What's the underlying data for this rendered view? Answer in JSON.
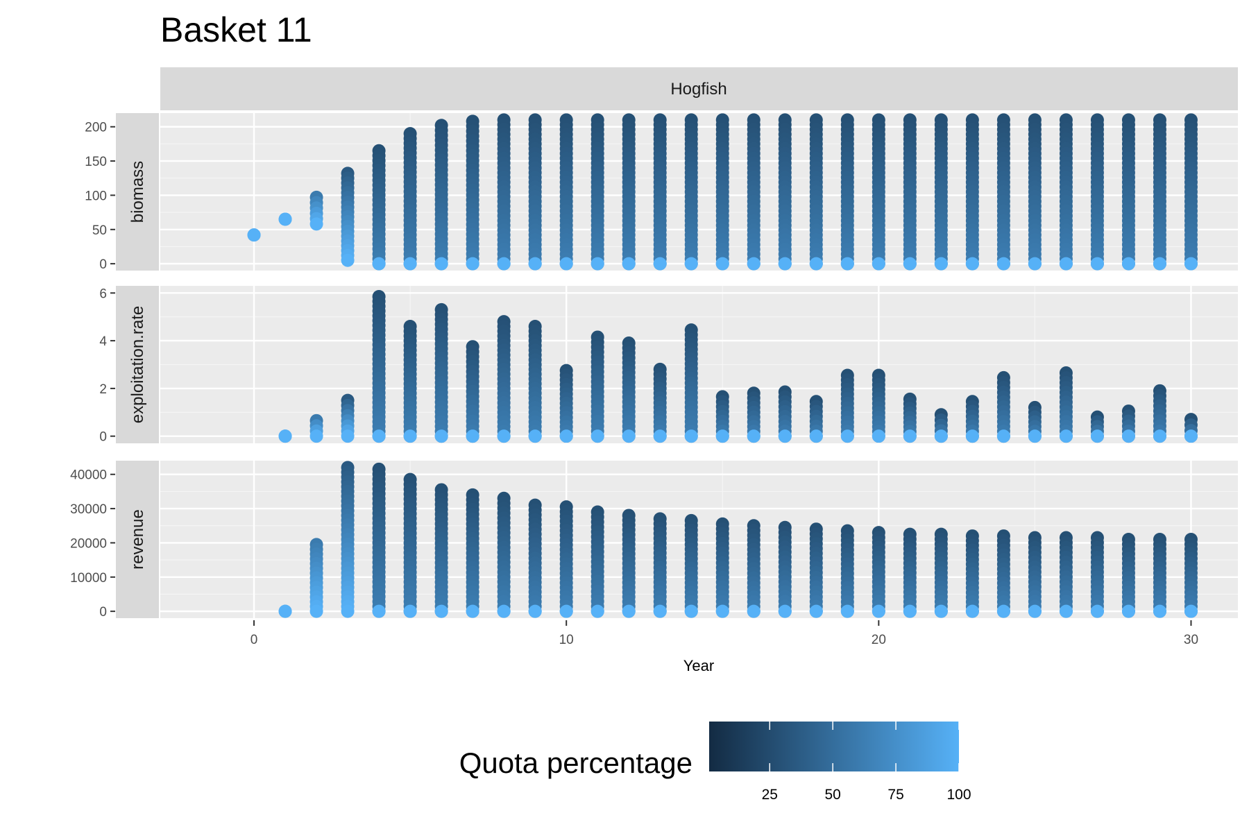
{
  "chart_data": {
    "type": "scatter",
    "title": "Basket 11",
    "facet_column": "Hogfish",
    "xlabel": "Year",
    "x_ticks": [
      0,
      10,
      20,
      30
    ],
    "xlim": [
      -3,
      31.5
    ],
    "grid": true,
    "legend": {
      "title": "Quota percentage",
      "placement": "bottom",
      "ticks": [
        25,
        50,
        75,
        100
      ],
      "range": [
        1,
        100
      ],
      "low_color": "#132B43",
      "high_color": "#56B1F7"
    },
    "panels": [
      {
        "name": "biomass",
        "ylim": [
          -10,
          220
        ],
        "y_ticks": [
          0,
          50,
          100,
          150,
          200
        ],
        "series": [
          {
            "year": 0,
            "min": 42,
            "max": 42,
            "min_quota": 85,
            "max_quota": 100
          },
          {
            "year": 1,
            "min": 65,
            "max": 65,
            "min_quota": 85,
            "max_quota": 100
          },
          {
            "year": 2,
            "min": 58,
            "max": 97,
            "min_quota": 60,
            "max_quota": 100
          },
          {
            "year": 3,
            "min": 5,
            "max": 132,
            "min_quota": 35,
            "max_quota": 100
          },
          {
            "year": 4,
            "min": 0,
            "max": 165
          },
          {
            "year": 5,
            "min": 0,
            "max": 190
          },
          {
            "year": 6,
            "min": 0,
            "max": 202
          },
          {
            "year": 7,
            "min": 0,
            "max": 208
          },
          {
            "year": 8,
            "min": 0,
            "max": 210
          },
          {
            "year": 9,
            "min": 0,
            "max": 210
          },
          {
            "year": 10,
            "min": 0,
            "max": 210
          },
          {
            "year": 11,
            "min": 0,
            "max": 210
          },
          {
            "year": 12,
            "min": 0,
            "max": 210
          },
          {
            "year": 13,
            "min": 0,
            "max": 210
          },
          {
            "year": 14,
            "min": 0,
            "max": 210
          },
          {
            "year": 15,
            "min": 0,
            "max": 210
          },
          {
            "year": 16,
            "min": 0,
            "max": 210
          },
          {
            "year": 17,
            "min": 0,
            "max": 210
          },
          {
            "year": 18,
            "min": 0,
            "max": 210
          },
          {
            "year": 19,
            "min": 0,
            "max": 210
          },
          {
            "year": 20,
            "min": 0,
            "max": 210
          },
          {
            "year": 21,
            "min": 0,
            "max": 210
          },
          {
            "year": 22,
            "min": 0,
            "max": 210
          },
          {
            "year": 23,
            "min": 0,
            "max": 210
          },
          {
            "year": 24,
            "min": 0,
            "max": 210
          },
          {
            "year": 25,
            "min": 0,
            "max": 210
          },
          {
            "year": 26,
            "min": 0,
            "max": 210
          },
          {
            "year": 27,
            "min": 0,
            "max": 210
          },
          {
            "year": 28,
            "min": 0,
            "max": 210
          },
          {
            "year": 29,
            "min": 0,
            "max": 210
          },
          {
            "year": 30,
            "min": 0,
            "max": 210
          }
        ]
      },
      {
        "name": "exploitation.rate",
        "ylim": [
          -0.3,
          6.3
        ],
        "y_ticks": [
          0,
          2,
          4,
          6
        ],
        "series": [
          {
            "year": 1,
            "min": 0,
            "max": 0,
            "min_quota": 85,
            "max_quota": 100
          },
          {
            "year": 2,
            "min": 0,
            "max": 0.65,
            "min_quota": 60,
            "max_quota": 100
          },
          {
            "year": 3,
            "min": 0,
            "max": 1.5,
            "min_quota": 35,
            "max_quota": 100
          },
          {
            "year": 4,
            "min": 0,
            "max": 5.85
          },
          {
            "year": 5,
            "min": 0,
            "max": 4.6
          },
          {
            "year": 6,
            "min": 0,
            "max": 5.3
          },
          {
            "year": 7,
            "min": 0,
            "max": 3.75
          },
          {
            "year": 8,
            "min": 0,
            "max": 4.8
          },
          {
            "year": 9,
            "min": 0,
            "max": 4.6
          },
          {
            "year": 10,
            "min": 0,
            "max": 2.75
          },
          {
            "year": 11,
            "min": 0,
            "max": 4.15
          },
          {
            "year": 12,
            "min": 0,
            "max": 3.9
          },
          {
            "year": 13,
            "min": 0,
            "max": 2.8
          },
          {
            "year": 14,
            "min": 0,
            "max": 4.45
          },
          {
            "year": 15,
            "min": 0,
            "max": 1.65
          },
          {
            "year": 16,
            "min": 0,
            "max": 1.8
          },
          {
            "year": 17,
            "min": 0,
            "max": 1.85
          },
          {
            "year": 18,
            "min": 0,
            "max": 1.45
          },
          {
            "year": 19,
            "min": 0,
            "max": 2.55
          },
          {
            "year": 20,
            "min": 0,
            "max": 2.55
          },
          {
            "year": 21,
            "min": 0,
            "max": 1.55
          },
          {
            "year": 22,
            "min": 0,
            "max": 0.9
          },
          {
            "year": 23,
            "min": 0,
            "max": 1.45
          },
          {
            "year": 24,
            "min": 0,
            "max": 2.45
          },
          {
            "year": 25,
            "min": 0,
            "max": 1.2
          },
          {
            "year": 26,
            "min": 0,
            "max": 2.65
          },
          {
            "year": 27,
            "min": 0,
            "max": 0.8
          },
          {
            "year": 28,
            "min": 0,
            "max": 1.05
          },
          {
            "year": 29,
            "min": 0,
            "max": 1.9
          },
          {
            "year": 30,
            "min": 0,
            "max": 0.7
          }
        ]
      },
      {
        "name": "revenue",
        "ylim": [
          -2000,
          44000
        ],
        "y_ticks": [
          0,
          10000,
          20000,
          30000,
          40000
        ],
        "series": [
          {
            "year": 1,
            "min": 0,
            "max": 0,
            "min_quota": 85,
            "max_quota": 100
          },
          {
            "year": 2,
            "min": 0,
            "max": 19500,
            "min_quota": 60,
            "max_quota": 100
          },
          {
            "year": 3,
            "min": 0,
            "max": 42000,
            "min_quota": 35,
            "max_quota": 100
          },
          {
            "year": 4,
            "min": 0,
            "max": 41500
          },
          {
            "year": 5,
            "min": 0,
            "max": 38500
          },
          {
            "year": 6,
            "min": 0,
            "max": 35500
          },
          {
            "year": 7,
            "min": 0,
            "max": 34000
          },
          {
            "year": 8,
            "min": 0,
            "max": 33000
          },
          {
            "year": 9,
            "min": 0,
            "max": 31000
          },
          {
            "year": 10,
            "min": 0,
            "max": 30500
          },
          {
            "year": 11,
            "min": 0,
            "max": 29000
          },
          {
            "year": 12,
            "min": 0,
            "max": 28000
          },
          {
            "year": 13,
            "min": 0,
            "max": 27000
          },
          {
            "year": 14,
            "min": 0,
            "max": 26500
          },
          {
            "year": 15,
            "min": 0,
            "max": 25500
          },
          {
            "year": 16,
            "min": 0,
            "max": 25000
          },
          {
            "year": 17,
            "min": 0,
            "max": 24500
          },
          {
            "year": 18,
            "min": 0,
            "max": 24000
          },
          {
            "year": 19,
            "min": 0,
            "max": 23500
          },
          {
            "year": 20,
            "min": 0,
            "max": 23000
          },
          {
            "year": 21,
            "min": 0,
            "max": 22500
          },
          {
            "year": 22,
            "min": 0,
            "max": 22500
          },
          {
            "year": 23,
            "min": 0,
            "max": 22000
          },
          {
            "year": 24,
            "min": 0,
            "max": 22000
          },
          {
            "year": 25,
            "min": 0,
            "max": 21500
          },
          {
            "year": 26,
            "min": 0,
            "max": 21500
          },
          {
            "year": 27,
            "min": 0,
            "max": 21500
          },
          {
            "year": 28,
            "min": 0,
            "max": 21000
          },
          {
            "year": 29,
            "min": 0,
            "max": 21000
          },
          {
            "year": 30,
            "min": 0,
            "max": 21000
          }
        ]
      }
    ]
  }
}
